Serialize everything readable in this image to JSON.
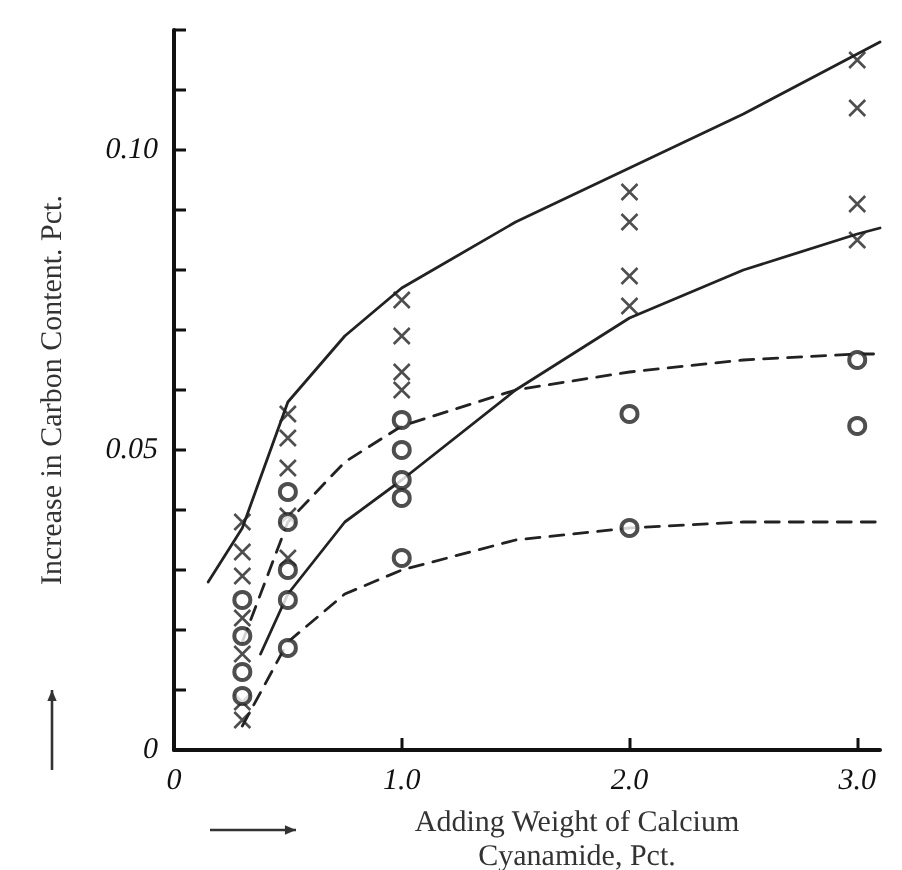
{
  "chart_data": {
    "type": "scatter",
    "xlabel": "Adding Weight of Calcium Cyanamide, Pct.",
    "ylabel": "Increase in Carbon Content. Pct.",
    "xlim": [
      0,
      3.1
    ],
    "xticks": [
      0,
      {
        "value": 1,
        "label": "1.0"
      },
      {
        "value": 2,
        "label": "2.0"
      },
      {
        "value": 3,
        "label": "3.0"
      }
    ],
    "ylim": [
      0,
      0.12
    ],
    "yticks": [
      0,
      {
        "value": 0.01,
        "label": null
      },
      {
        "value": 0.02,
        "label": null
      },
      {
        "value": 0.03,
        "label": null
      },
      {
        "value": 0.04,
        "label": null
      },
      {
        "value": 0.05,
        "label": "0.05"
      },
      {
        "value": 0.06,
        "label": null
      },
      {
        "value": 0.07,
        "label": null
      },
      {
        "value": 0.08,
        "label": null
      },
      {
        "value": 0.09,
        "label": null
      },
      {
        "value": 0.1,
        "label": "0.10"
      },
      {
        "value": 0.11,
        "label": null
      },
      {
        "value": 0.12,
        "label": null
      }
    ],
    "grid": false,
    "series": [
      {
        "type": "line",
        "color": "#222222",
        "line_style": "solid",
        "x": [
          0.15,
          0.3,
          0.5,
          0.75,
          1,
          1.5,
          2,
          2.5,
          3,
          3.1
        ],
        "values": [
          0.028,
          0.037,
          0.058,
          0.069,
          0.077,
          0.088,
          0.097,
          0.106,
          0.116,
          0.118
        ]
      },
      {
        "type": "line",
        "color": "#222222",
        "line_style": "solid",
        "x": [
          0.38,
          0.5,
          0.75,
          1,
          1.5,
          2,
          2.5,
          3,
          3.1
        ],
        "values": [
          0.016,
          0.026,
          0.038,
          0.045,
          0.06,
          0.072,
          0.08,
          0.086,
          0.087
        ]
      },
      {
        "type": "line",
        "color": "#222222",
        "line_style": "dashed",
        "x": [
          0.3,
          0.5,
          0.75,
          1,
          1.5,
          2,
          2.5,
          3,
          3.1
        ],
        "values": [
          0.018,
          0.038,
          0.048,
          0.054,
          0.06,
          0.063,
          0.065,
          0.066,
          0.066
        ]
      },
      {
        "type": "line",
        "color": "#222222",
        "line_style": "dashed",
        "x": [
          0.3,
          0.5,
          0.75,
          1,
          1.5,
          2,
          2.5,
          3,
          3.1
        ],
        "values": [
          0.004,
          0.018,
          0.026,
          0.03,
          0.035,
          0.037,
          0.038,
          0.038,
          0.038
        ]
      },
      {
        "color": "#222222",
        "marker": "cross",
        "x": [
          0.3,
          0.3,
          0.3,
          0.3,
          0.3,
          0.3,
          0.3,
          0.5,
          0.5,
          0.5,
          0.5,
          0.5,
          1,
          1,
          1,
          1,
          2,
          2,
          2,
          2,
          3,
          3,
          3,
          3
        ],
        "values": [
          0.005,
          0.008,
          0.016,
          0.022,
          0.029,
          0.033,
          0.038,
          0.056,
          0.052,
          0.047,
          0.039,
          0.032,
          0.075,
          0.069,
          0.063,
          0.06,
          0.093,
          0.088,
          0.079,
          0.074,
          0.115,
          0.107,
          0.091,
          0.085
        ]
      },
      {
        "color": "#222222",
        "marker": "circle",
        "x": [
          0.3,
          0.3,
          0.3,
          0.3,
          0.5,
          0.5,
          0.5,
          0.5,
          0.5,
          1,
          1,
          1,
          1,
          1,
          2,
          2,
          3,
          3
        ],
        "values": [
          0.025,
          0.019,
          0.013,
          0.009,
          0.043,
          0.038,
          0.03,
          0.025,
          0.017,
          0.055,
          0.05,
          0.045,
          0.042,
          0.032,
          0.056,
          0.037,
          0.065,
          0.054
        ]
      }
    ]
  }
}
